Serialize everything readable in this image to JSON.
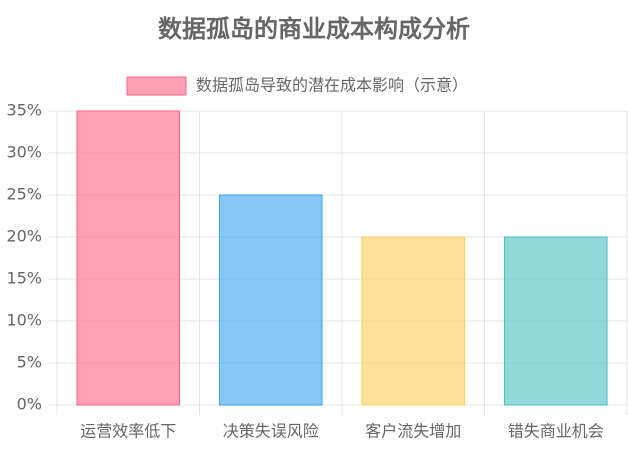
{
  "chart_data": {
    "type": "bar",
    "title": "数据孤岛的商业成本构成分析",
    "categories": [
      "运营效率低下",
      "决策失误风险",
      "客户流失增加",
      "错失商业机会"
    ],
    "series": [
      {
        "name": "数据孤岛导致的潜在成本影响（示意）",
        "values": [
          35,
          25,
          20,
          20
        ],
        "colors": [
          "rgba(255,99,132,0.6)",
          "rgba(54,162,235,0.6)",
          "rgba(255,206,86,0.6)",
          "rgba(75,192,192,0.6)"
        ],
        "border_colors": [
          "rgb(255,99,132)",
          "rgb(54,162,235)",
          "rgb(255,206,86)",
          "rgb(75,192,192)"
        ]
      }
    ],
    "ylim": [
      0,
      35
    ],
    "yticks": [
      {
        "value": 0,
        "label": "0%"
      },
      {
        "value": 5,
        "label": "5%"
      },
      {
        "value": 10,
        "label": "10%"
      },
      {
        "value": 15,
        "label": "15%"
      },
      {
        "value": 20,
        "label": "20%"
      },
      {
        "value": 25,
        "label": "25%"
      },
      {
        "value": 30,
        "label": "30%"
      },
      {
        "value": 35,
        "label": "35%"
      }
    ],
    "grid": true
  }
}
